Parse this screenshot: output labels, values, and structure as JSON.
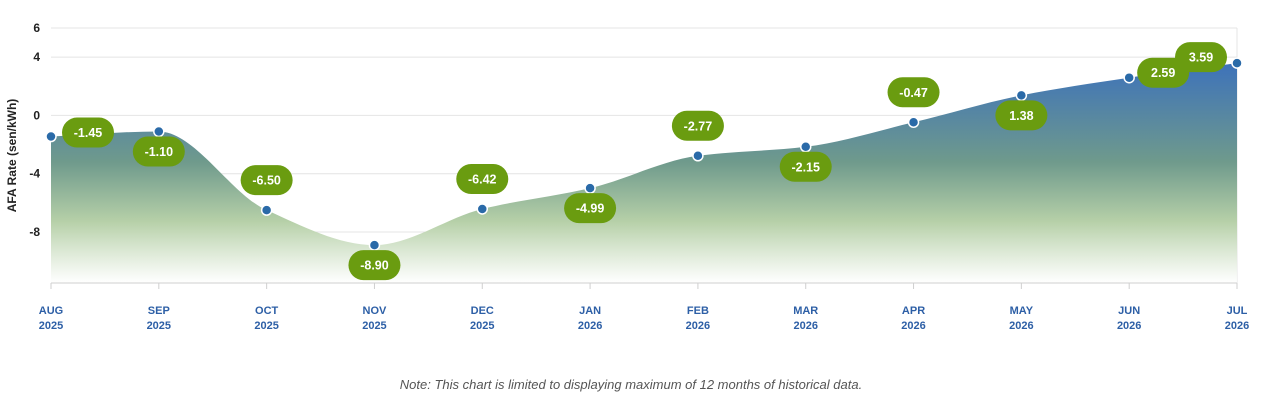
{
  "chart_data": {
    "type": "area",
    "ylabel": "AFA Rate (sen/kWh)",
    "yticks": [
      6,
      4,
      0,
      -4,
      -8
    ],
    "ylim": [
      -11.5,
      6
    ],
    "categories": [
      {
        "month": "AUG",
        "year": "2025"
      },
      {
        "month": "SEP",
        "year": "2025"
      },
      {
        "month": "OCT",
        "year": "2025"
      },
      {
        "month": "NOV",
        "year": "2025"
      },
      {
        "month": "DEC",
        "year": "2025"
      },
      {
        "month": "JAN",
        "year": "2026"
      },
      {
        "month": "FEB",
        "year": "2026"
      },
      {
        "month": "MAR",
        "year": "2026"
      },
      {
        "month": "APR",
        "year": "2026"
      },
      {
        "month": "MAY",
        "year": "2026"
      },
      {
        "month": "JUN",
        "year": "2026"
      },
      {
        "month": "JUL",
        "year": "2026"
      }
    ],
    "values": [
      -1.45,
      -1.1,
      -6.5,
      -8.9,
      -6.42,
      -4.99,
      -2.77,
      -2.15,
      -0.47,
      1.38,
      2.59,
      3.59
    ],
    "labels": [
      "-1.45",
      "-1.10",
      "-6.50",
      "-8.90",
      "-6.42",
      "-4.99",
      "-2.77",
      "-2.15",
      "-0.47",
      "1.38",
      "2.59",
      "3.59"
    ],
    "label_positions": [
      "right",
      "below",
      "above",
      "below",
      "above",
      "below",
      "above",
      "below",
      "above",
      "below",
      "left",
      "above-left"
    ],
    "grid": true,
    "legend": "none",
    "colors": {
      "fill_top": "#3d72ba",
      "fill_mid": "#6f9a8c",
      "fill_low": "#b6d0a8",
      "fill_bottom": "#ffffff",
      "point": "#2a6aa8",
      "label_bg": "#6a9c10",
      "axis_tick_x": "#2d5fa6",
      "grid": "#e4e4e4"
    }
  },
  "note": "Note: This chart is limited to displaying maximum of 12 months of historical data."
}
